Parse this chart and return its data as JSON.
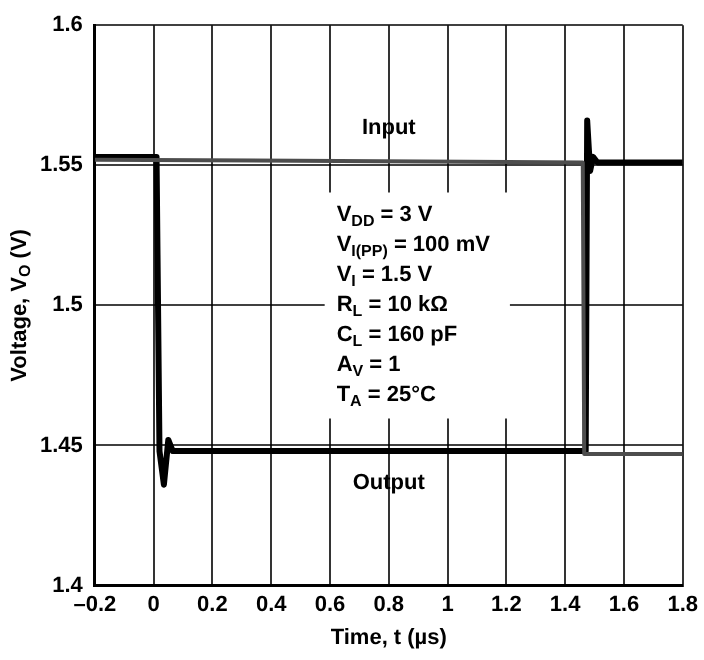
{
  "chart_data": {
    "type": "line",
    "xlabel": "Time, t (µs)",
    "ylabel": "Voltage, V$_{O}$ (V)",
    "xlim": [
      -0.2,
      1.8
    ],
    "xticks": [
      {
        "value": -0.2,
        "label": "–0.2"
      },
      0,
      0.2,
      0.4,
      0.6,
      0.8,
      1,
      1.2,
      1.4,
      1.6,
      1.8
    ],
    "ylim": [
      1.4,
      1.6
    ],
    "yticks": [
      1.4,
      1.45,
      1.5,
      1.55,
      1.6
    ],
    "grid": true,
    "legend": false,
    "marker": "none",
    "line_style": "solid",
    "series": [
      {
        "name": "Input",
        "color": "#4d4d4d",
        "x": [
          -0.2,
          1.46,
          1.465,
          1.8
        ],
        "values": [
          1.552,
          1.551,
          1.447,
          1.447
        ]
      },
      {
        "name": "Output",
        "color": "#000000",
        "x": [
          -0.2,
          0.01,
          0.02,
          0.035,
          0.05,
          0.065,
          1.47,
          1.475,
          1.485,
          1.495,
          1.51,
          1.8
        ],
        "values": [
          1.553,
          1.553,
          1.448,
          1.436,
          1.452,
          1.448,
          1.448,
          1.566,
          1.548,
          1.553,
          1.551,
          1.551
        ]
      }
    ],
    "annotations": [
      "V$_{DD}$ = 3 V",
      "V$_{I(PP)}$ = 100 mV",
      "V$_{I}$ = 1.5 V",
      "R$_{L}$ = 10 kΩ",
      "C$_{L}$ = 160 pF",
      "A$_{V}$ = 1",
      "T$_{A}$ = 25°C"
    ]
  }
}
